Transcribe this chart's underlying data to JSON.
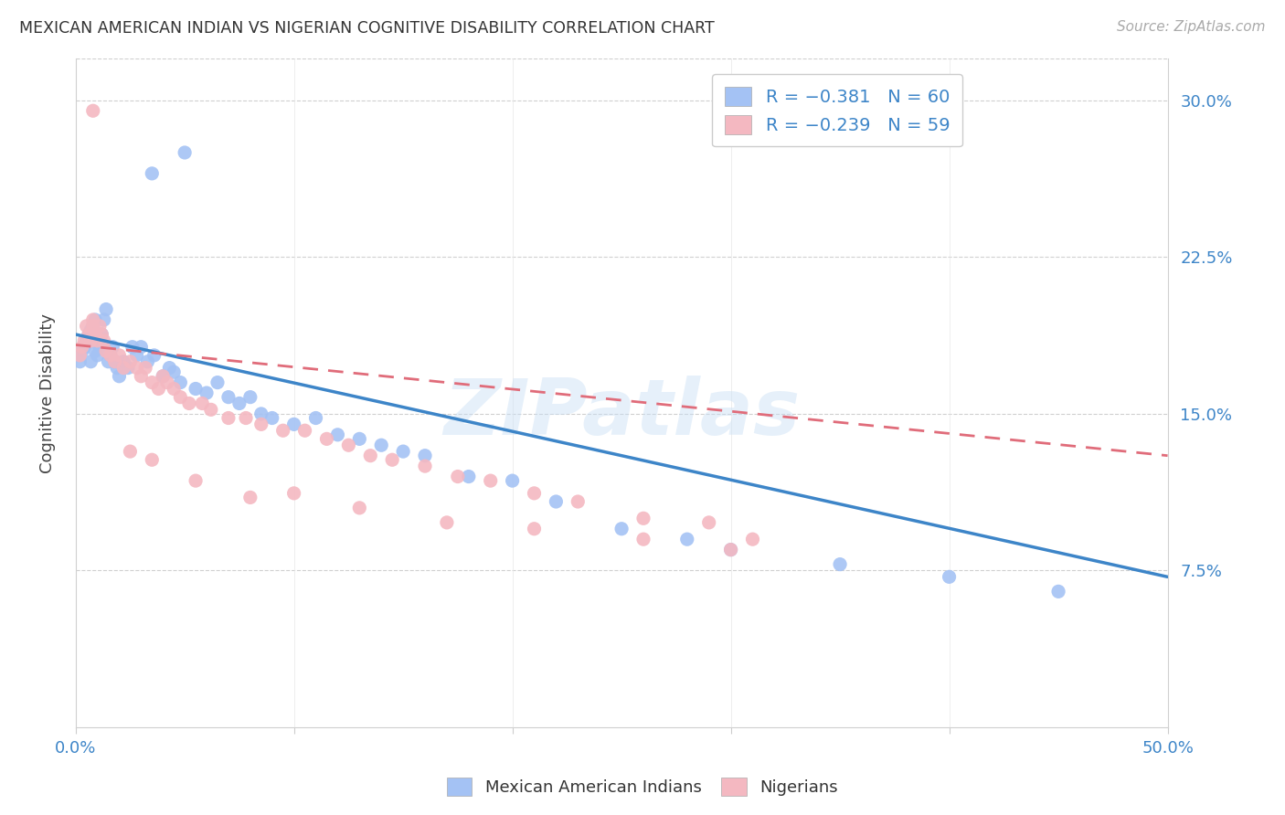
{
  "title": "MEXICAN AMERICAN INDIAN VS NIGERIAN COGNITIVE DISABILITY CORRELATION CHART",
  "source": "Source: ZipAtlas.com",
  "ylabel": "Cognitive Disability",
  "yticks": [
    0.075,
    0.15,
    0.225,
    0.3
  ],
  "ytick_labels": [
    "7.5%",
    "15.0%",
    "22.5%",
    "30.0%"
  ],
  "xmin": 0.0,
  "xmax": 0.5,
  "ymin": 0.0,
  "ymax": 0.32,
  "watermark": "ZIPatlas",
  "blue_color": "#a4c2f4",
  "pink_color": "#f4b8c1",
  "blue_line_color": "#3d85c8",
  "pink_line_color": "#e06c7a",
  "legend_label1": "Mexican American Indians",
  "legend_label2": "Nigerians",
  "blue_r": "R = −0.381",
  "blue_n": "N = 60",
  "pink_r": "R = −0.239",
  "pink_n": "N = 59",
  "blue_scatter_x": [
    0.002,
    0.003,
    0.004,
    0.005,
    0.006,
    0.007,
    0.007,
    0.008,
    0.008,
    0.009,
    0.009,
    0.01,
    0.01,
    0.011,
    0.012,
    0.013,
    0.014,
    0.015,
    0.016,
    0.017,
    0.018,
    0.019,
    0.02,
    0.022,
    0.024,
    0.026,
    0.028,
    0.03,
    0.033,
    0.036,
    0.04,
    0.043,
    0.045,
    0.048,
    0.055,
    0.06,
    0.065,
    0.07,
    0.075,
    0.08,
    0.085,
    0.09,
    0.1,
    0.11,
    0.12,
    0.13,
    0.14,
    0.15,
    0.16,
    0.18,
    0.2,
    0.22,
    0.25,
    0.28,
    0.3,
    0.35,
    0.4,
    0.45,
    0.05,
    0.035
  ],
  "blue_scatter_y": [
    0.175,
    0.18,
    0.182,
    0.185,
    0.188,
    0.175,
    0.19,
    0.185,
    0.192,
    0.18,
    0.195,
    0.178,
    0.185,
    0.182,
    0.188,
    0.195,
    0.2,
    0.175,
    0.178,
    0.182,
    0.175,
    0.172,
    0.168,
    0.175,
    0.172,
    0.182,
    0.178,
    0.182,
    0.175,
    0.178,
    0.168,
    0.172,
    0.17,
    0.165,
    0.162,
    0.16,
    0.165,
    0.158,
    0.155,
    0.158,
    0.15,
    0.148,
    0.145,
    0.148,
    0.14,
    0.138,
    0.135,
    0.132,
    0.13,
    0.12,
    0.118,
    0.108,
    0.095,
    0.09,
    0.085,
    0.078,
    0.072,
    0.065,
    0.275,
    0.265
  ],
  "pink_scatter_x": [
    0.002,
    0.003,
    0.004,
    0.005,
    0.006,
    0.007,
    0.008,
    0.009,
    0.01,
    0.011,
    0.012,
    0.013,
    0.014,
    0.016,
    0.018,
    0.02,
    0.022,
    0.025,
    0.028,
    0.03,
    0.032,
    0.035,
    0.038,
    0.04,
    0.042,
    0.045,
    0.048,
    0.052,
    0.058,
    0.062,
    0.07,
    0.078,
    0.085,
    0.095,
    0.105,
    0.115,
    0.125,
    0.135,
    0.145,
    0.16,
    0.175,
    0.19,
    0.21,
    0.23,
    0.26,
    0.29,
    0.31,
    0.008,
    0.025,
    0.035,
    0.055,
    0.08,
    0.1,
    0.13,
    0.17,
    0.21,
    0.26,
    0.3,
    0.008
  ],
  "pink_scatter_y": [
    0.178,
    0.182,
    0.185,
    0.192,
    0.188,
    0.185,
    0.192,
    0.188,
    0.185,
    0.192,
    0.188,
    0.185,
    0.18,
    0.178,
    0.175,
    0.178,
    0.172,
    0.175,
    0.172,
    0.168,
    0.172,
    0.165,
    0.162,
    0.168,
    0.165,
    0.162,
    0.158,
    0.155,
    0.155,
    0.152,
    0.148,
    0.148,
    0.145,
    0.142,
    0.142,
    0.138,
    0.135,
    0.13,
    0.128,
    0.125,
    0.12,
    0.118,
    0.112,
    0.108,
    0.1,
    0.098,
    0.09,
    0.195,
    0.132,
    0.128,
    0.118,
    0.11,
    0.112,
    0.105,
    0.098,
    0.095,
    0.09,
    0.085,
    0.295
  ],
  "blue_line_x": [
    0.0,
    0.5
  ],
  "blue_line_y": [
    0.188,
    0.072
  ],
  "pink_line_x": [
    0.0,
    0.5
  ],
  "pink_line_y": [
    0.183,
    0.13
  ],
  "xtick_positions": [
    0.0,
    0.1,
    0.2,
    0.3,
    0.4,
    0.5
  ],
  "xtick_show_labels": [
    true,
    false,
    false,
    false,
    false,
    true
  ],
  "xtick_labels_text": [
    "0.0%",
    "",
    "",
    "",
    "",
    "50.0%"
  ]
}
